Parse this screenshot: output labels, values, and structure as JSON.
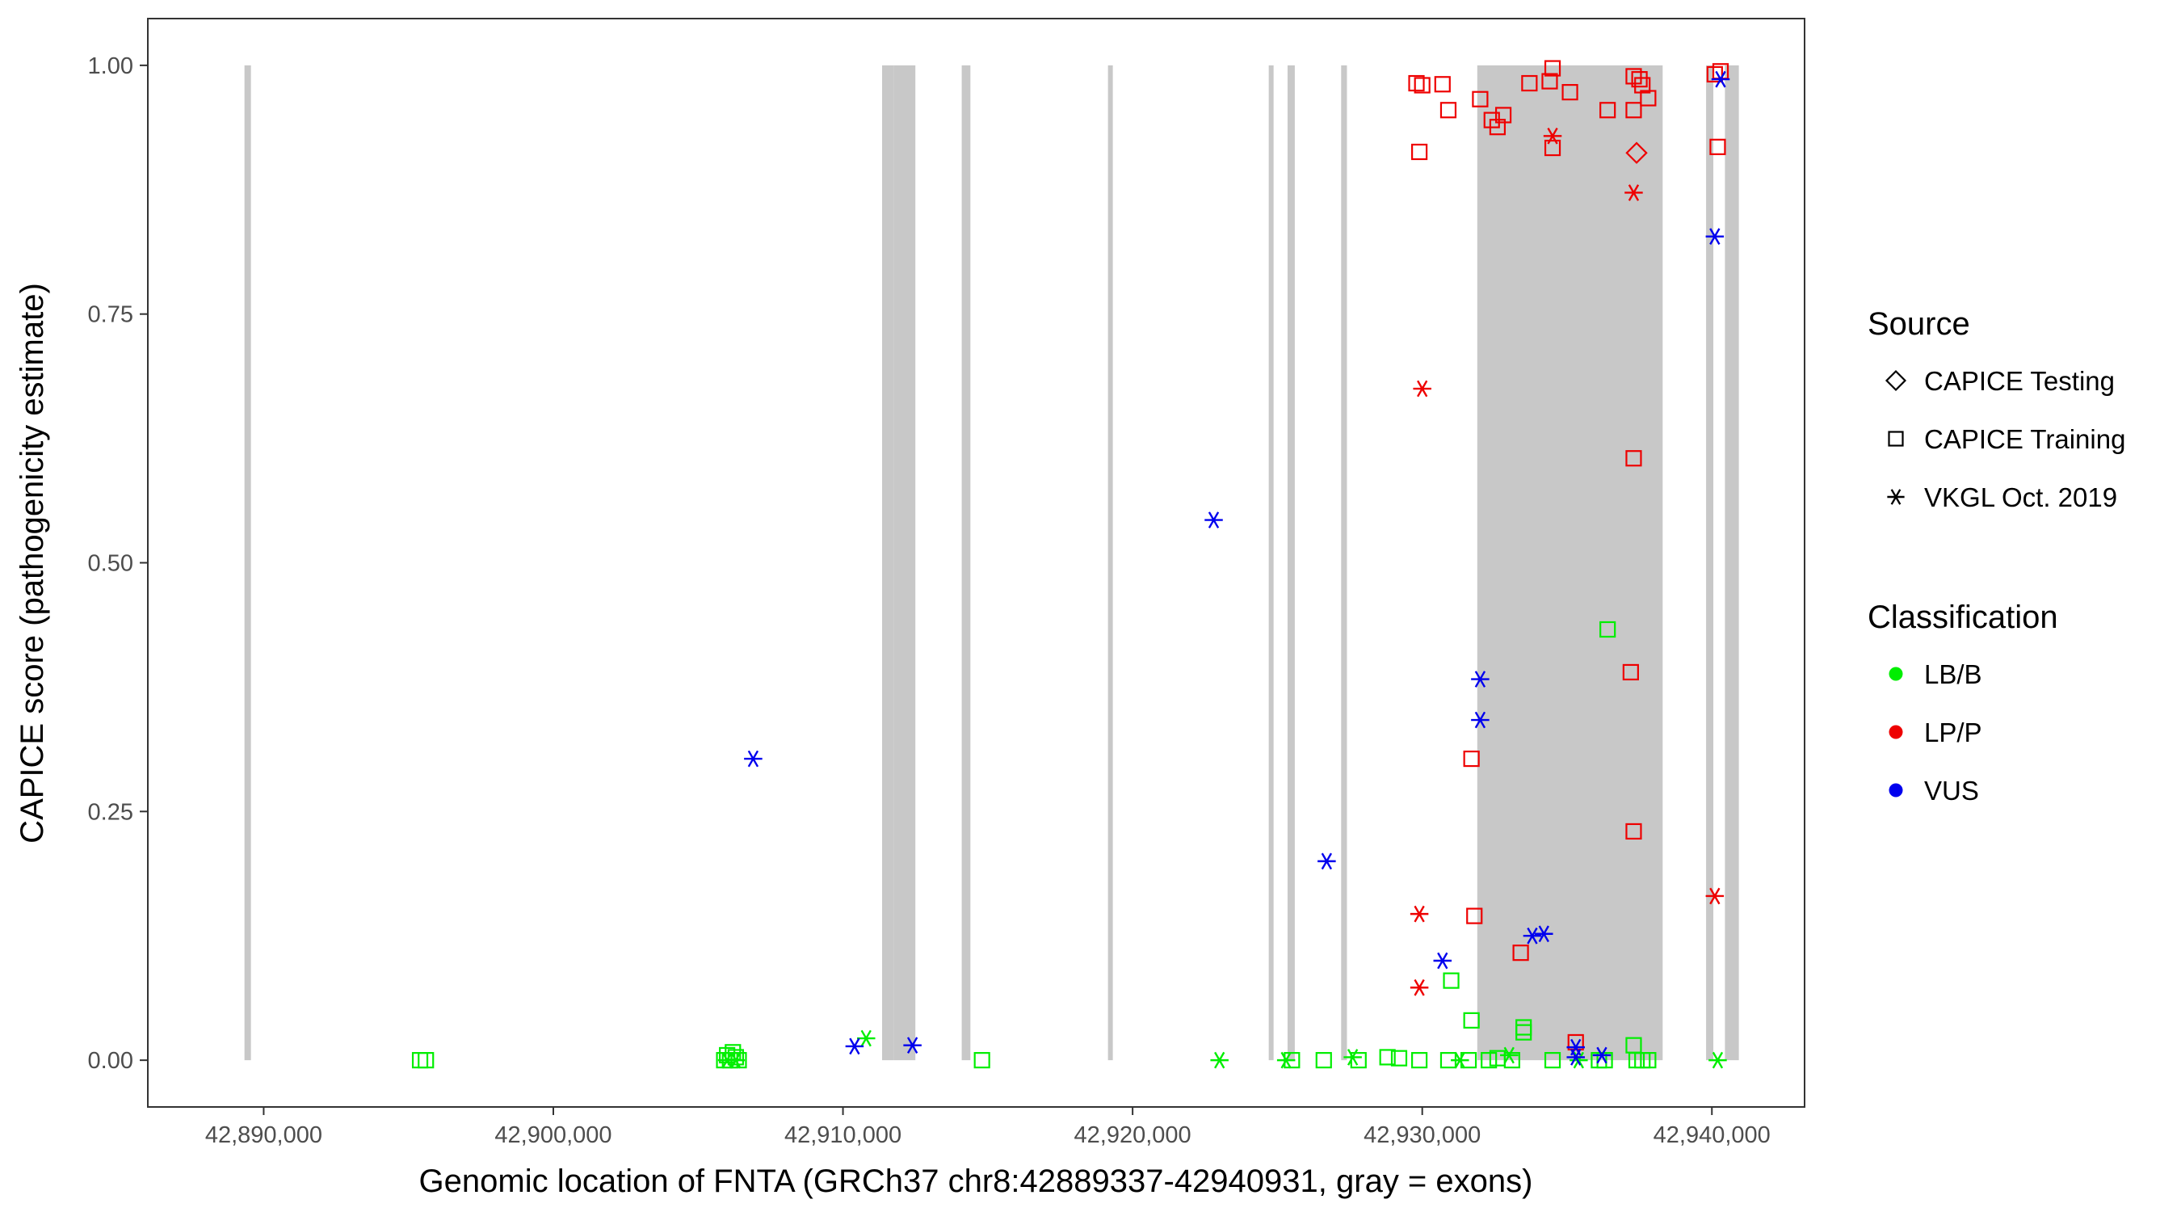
{
  "chart_data": {
    "type": "scatter",
    "xlabel": "Genomic location of FNTA (GRCh37 chr8:42889337-42940931, gray = exons)",
    "ylabel": "CAPICE score (pathogenicity estimate)",
    "xlim": [
      42886000,
      42943200
    ],
    "ylim": [
      -0.047,
      1.047
    ],
    "x_ticks": [
      42890000,
      42900000,
      42910000,
      42920000,
      42930000,
      42940000
    ],
    "x_tick_labels": [
      "42,890,000",
      "42,900,000",
      "42,910,000",
      "42,920,000",
      "42,930,000",
      "42,940,000"
    ],
    "y_ticks": [
      0,
      0.25,
      0.5,
      0.75,
      1
    ],
    "y_tick_labels": [
      "0.00",
      "0.25",
      "0.50",
      "0.75",
      "1.00"
    ],
    "grid": false,
    "legend_position": "right",
    "exon_color": "#c8c8c8",
    "exons": [
      [
        42889337,
        42889560
      ],
      [
        42911350,
        42911750
      ],
      [
        42911750,
        42912500
      ],
      [
        42914100,
        42914400
      ],
      [
        42919150,
        42919300
      ],
      [
        42924700,
        42924850
      ],
      [
        42925350,
        42925600
      ],
      [
        42927200,
        42927400
      ],
      [
        42931900,
        42938300
      ],
      [
        42939800,
        42940050
      ],
      [
        42940450,
        42940931
      ]
    ],
    "legends": {
      "source": {
        "title": "Source",
        "items": [
          {
            "label": "CAPICE Testing",
            "shape": "diamond"
          },
          {
            "label": "CAPICE Training",
            "shape": "square"
          },
          {
            "label": "VKGL Oct. 2019",
            "shape": "asterisk"
          }
        ]
      },
      "classification": {
        "title": "Classification",
        "items": [
          {
            "label": "LB/B",
            "color": "#00ee00"
          },
          {
            "label": "LP/P",
            "color": "#ee0000"
          },
          {
            "label": "VUS",
            "color": "#0000ee"
          }
        ]
      }
    },
    "series": [
      {
        "name": "LB/B",
        "color": "#00ee00",
        "points": [
          {
            "x": 42895400,
            "y": 0.0,
            "shape": "square"
          },
          {
            "x": 42895600,
            "y": 0.0,
            "shape": "square"
          },
          {
            "x": 42905900,
            "y": 0.0,
            "shape": "square"
          },
          {
            "x": 42906000,
            "y": 0.005,
            "shape": "square"
          },
          {
            "x": 42906100,
            "y": 0.0,
            "shape": "square"
          },
          {
            "x": 42906200,
            "y": 0.008,
            "shape": "square"
          },
          {
            "x": 42906300,
            "y": 0.003,
            "shape": "square"
          },
          {
            "x": 42906400,
            "y": 0.0,
            "shape": "square"
          },
          {
            "x": 42906000,
            "y": 0.0,
            "shape": "asterisk"
          },
          {
            "x": 42906300,
            "y": 0.0,
            "shape": "asterisk"
          },
          {
            "x": 42910800,
            "y": 0.022,
            "shape": "asterisk"
          },
          {
            "x": 42914800,
            "y": 0.0,
            "shape": "square"
          },
          {
            "x": 42923000,
            "y": 0.0,
            "shape": "asterisk"
          },
          {
            "x": 42925300,
            "y": 0.0,
            "shape": "asterisk"
          },
          {
            "x": 42925500,
            "y": 0.0,
            "shape": "square"
          },
          {
            "x": 42926600,
            "y": 0.0,
            "shape": "square"
          },
          {
            "x": 42927600,
            "y": 0.003,
            "shape": "asterisk"
          },
          {
            "x": 42927800,
            "y": 0.0,
            "shape": "square"
          },
          {
            "x": 42928800,
            "y": 0.003,
            "shape": "square"
          },
          {
            "x": 42929200,
            "y": 0.002,
            "shape": "square"
          },
          {
            "x": 42929900,
            "y": 0.0,
            "shape": "square"
          },
          {
            "x": 42931000,
            "y": 0.08,
            "shape": "square"
          },
          {
            "x": 42930900,
            "y": 0.0,
            "shape": "square"
          },
          {
            "x": 42931300,
            "y": 0.0,
            "shape": "asterisk"
          },
          {
            "x": 42931600,
            "y": 0.0,
            "shape": "square"
          },
          {
            "x": 42931700,
            "y": 0.04,
            "shape": "square"
          },
          {
            "x": 42932300,
            "y": 0.0,
            "shape": "square"
          },
          {
            "x": 42932600,
            "y": 0.002,
            "shape": "square"
          },
          {
            "x": 42933000,
            "y": 0.005,
            "shape": "asterisk"
          },
          {
            "x": 42933100,
            "y": 0.0,
            "shape": "square"
          },
          {
            "x": 42933500,
            "y": 0.028,
            "shape": "square"
          },
          {
            "x": 42933500,
            "y": 0.033,
            "shape": "square"
          },
          {
            "x": 42934500,
            "y": 0.0,
            "shape": "square"
          },
          {
            "x": 42935400,
            "y": 0.0,
            "shape": "asterisk"
          },
          {
            "x": 42936100,
            "y": 0.0,
            "shape": "square"
          },
          {
            "x": 42936300,
            "y": 0.0,
            "shape": "square"
          },
          {
            "x": 42936400,
            "y": 0.433,
            "shape": "square"
          },
          {
            "x": 42937300,
            "y": 0.015,
            "shape": "square"
          },
          {
            "x": 42937400,
            "y": 0.0,
            "shape": "square"
          },
          {
            "x": 42937600,
            "y": 0.0,
            "shape": "square"
          },
          {
            "x": 42937800,
            "y": 0.0,
            "shape": "square"
          },
          {
            "x": 42940200,
            "y": 0.0,
            "shape": "asterisk"
          }
        ]
      },
      {
        "name": "LP/P",
        "color": "#ee0000",
        "points": [
          {
            "x": 42929800,
            "y": 0.982,
            "shape": "square"
          },
          {
            "x": 42930000,
            "y": 0.98,
            "shape": "square"
          },
          {
            "x": 42929900,
            "y": 0.913,
            "shape": "square"
          },
          {
            "x": 42930000,
            "y": 0.675,
            "shape": "asterisk"
          },
          {
            "x": 42929900,
            "y": 0.147,
            "shape": "asterisk"
          },
          {
            "x": 42929900,
            "y": 0.073,
            "shape": "asterisk"
          },
          {
            "x": 42930700,
            "y": 0.981,
            "shape": "square"
          },
          {
            "x": 42930900,
            "y": 0.955,
            "shape": "square"
          },
          {
            "x": 42931700,
            "y": 0.303,
            "shape": "square"
          },
          {
            "x": 42931800,
            "y": 0.145,
            "shape": "square"
          },
          {
            "x": 42932000,
            "y": 0.966,
            "shape": "square"
          },
          {
            "x": 42932400,
            "y": 0.945,
            "shape": "square"
          },
          {
            "x": 42932600,
            "y": 0.938,
            "shape": "square"
          },
          {
            "x": 42932800,
            "y": 0.95,
            "shape": "square"
          },
          {
            "x": 42933400,
            "y": 0.108,
            "shape": "square"
          },
          {
            "x": 42933700,
            "y": 0.982,
            "shape": "square"
          },
          {
            "x": 42934400,
            "y": 0.984,
            "shape": "square"
          },
          {
            "x": 42934500,
            "y": 0.997,
            "shape": "square"
          },
          {
            "x": 42934500,
            "y": 0.917,
            "shape": "square"
          },
          {
            "x": 42934500,
            "y": 0.929,
            "shape": "asterisk"
          },
          {
            "x": 42935100,
            "y": 0.973,
            "shape": "square"
          },
          {
            "x": 42935300,
            "y": 0.018,
            "shape": "square"
          },
          {
            "x": 42936400,
            "y": 0.955,
            "shape": "square"
          },
          {
            "x": 42937200,
            "y": 0.39,
            "shape": "square"
          },
          {
            "x": 42937300,
            "y": 0.989,
            "shape": "square"
          },
          {
            "x": 42937300,
            "y": 0.955,
            "shape": "square"
          },
          {
            "x": 42937300,
            "y": 0.605,
            "shape": "square"
          },
          {
            "x": 42937300,
            "y": 0.23,
            "shape": "square"
          },
          {
            "x": 42937300,
            "y": 0.872,
            "shape": "asterisk"
          },
          {
            "x": 42937400,
            "y": 0.912,
            "shape": "diamond"
          },
          {
            "x": 42937500,
            "y": 0.986,
            "shape": "square"
          },
          {
            "x": 42937600,
            "y": 0.98,
            "shape": "square"
          },
          {
            "x": 42937800,
            "y": 0.967,
            "shape": "square"
          },
          {
            "x": 42940100,
            "y": 0.991,
            "shape": "square"
          },
          {
            "x": 42940200,
            "y": 0.918,
            "shape": "square"
          },
          {
            "x": 42940300,
            "y": 0.994,
            "shape": "square"
          },
          {
            "x": 42940100,
            "y": 0.165,
            "shape": "asterisk"
          }
        ]
      },
      {
        "name": "VUS",
        "color": "#0000ee",
        "points": [
          {
            "x": 42906900,
            "y": 0.303,
            "shape": "asterisk"
          },
          {
            "x": 42910400,
            "y": 0.014,
            "shape": "asterisk"
          },
          {
            "x": 42912400,
            "y": 0.015,
            "shape": "asterisk"
          },
          {
            "x": 42922800,
            "y": 0.543,
            "shape": "asterisk"
          },
          {
            "x": 42926700,
            "y": 0.2,
            "shape": "asterisk"
          },
          {
            "x": 42930700,
            "y": 0.1,
            "shape": "asterisk"
          },
          {
            "x": 42932000,
            "y": 0.383,
            "shape": "asterisk"
          },
          {
            "x": 42932000,
            "y": 0.342,
            "shape": "asterisk"
          },
          {
            "x": 42933800,
            "y": 0.125,
            "shape": "asterisk"
          },
          {
            "x": 42934200,
            "y": 0.127,
            "shape": "asterisk"
          },
          {
            "x": 42935300,
            "y": 0.013,
            "shape": "asterisk"
          },
          {
            "x": 42935300,
            "y": 0.003,
            "shape": "asterisk"
          },
          {
            "x": 42936200,
            "y": 0.005,
            "shape": "asterisk"
          },
          {
            "x": 42940100,
            "y": 0.828,
            "shape": "asterisk"
          },
          {
            "x": 42940300,
            "y": 0.986,
            "shape": "asterisk"
          }
        ]
      }
    ]
  }
}
